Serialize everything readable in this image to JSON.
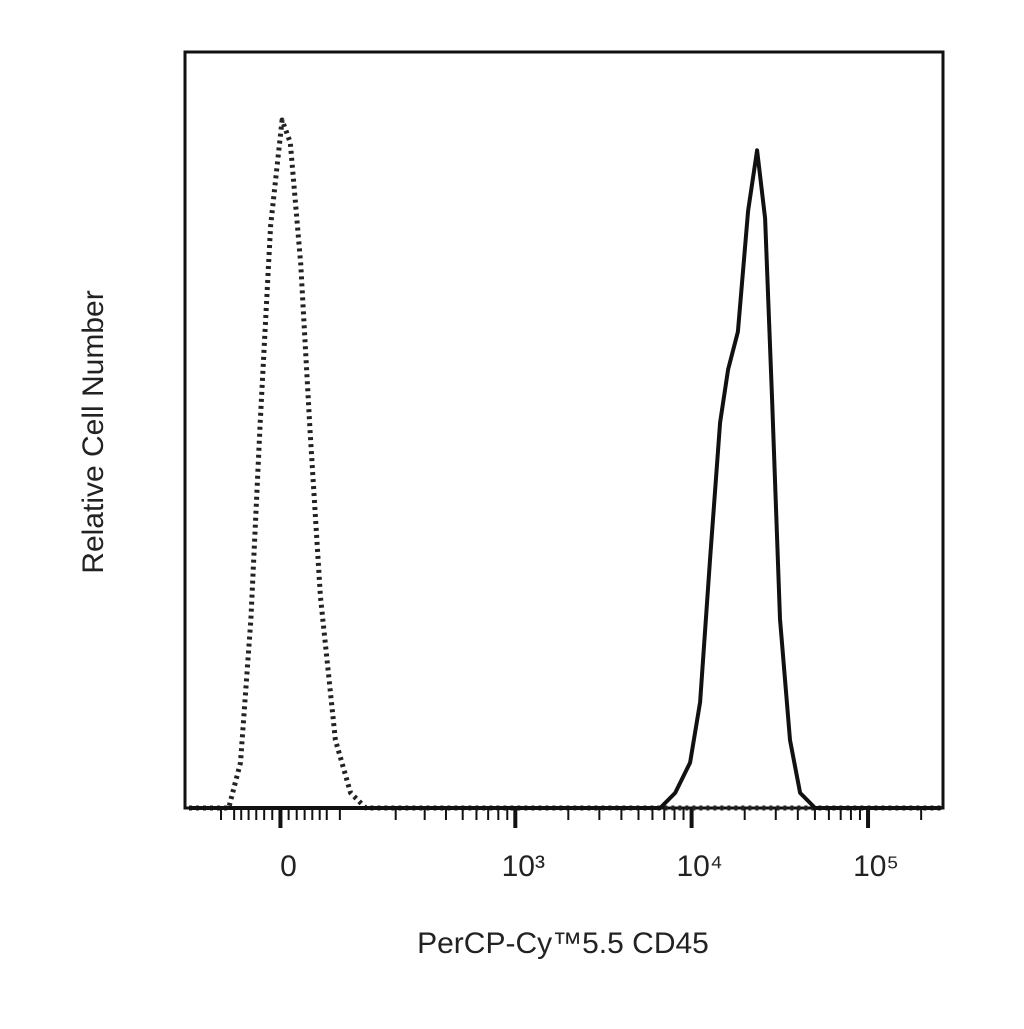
{
  "chart_data": {
    "type": "histogram-overlay",
    "xlabel": "PerCP-Cy™5.5 CD45",
    "ylabel": "Relative Cell Number",
    "xscale": "biexponential",
    "xlim": [
      -149,
      266000
    ],
    "ylim": [
      0,
      100
    ],
    "xticks": [
      {
        "value": 0,
        "label": "0"
      },
      {
        "value": 1000,
        "label": "10³"
      },
      {
        "value": 10000,
        "label": "10⁴"
      },
      {
        "value": 100000,
        "label": "10⁵"
      }
    ],
    "xminor_ticks": [
      -80,
      -60,
      -50,
      -40,
      -30,
      -20,
      -10,
      10,
      20,
      30,
      40,
      50,
      60,
      80,
      200,
      300,
      400,
      500,
      600,
      700,
      800,
      900,
      2000,
      3000,
      4000,
      5000,
      6000,
      7000,
      8000,
      9000,
      20000,
      30000,
      40000,
      50000,
      60000,
      70000,
      80000,
      90000,
      200000
    ],
    "series": [
      {
        "color": "#222222",
        "dash": "dotted",
        "x": [
          -140,
          -68,
          -51,
          -37,
          -25,
          -12,
          2,
          12,
          25,
          37,
          51,
          73,
          98,
          127,
          260000
        ],
        "values": [
          0,
          0,
          6,
          25,
          51,
          77,
          91,
          88,
          72,
          50,
          28,
          9,
          2,
          0,
          0
        ]
      },
      {
        "color": "#111111",
        "dash": "solid",
        "x": [
          -140,
          6640,
          8070,
          9810,
          11170,
          12730,
          14500,
          16100,
          18300,
          20900,
          23500,
          26100,
          28600,
          31700,
          36100,
          41200,
          50100,
          260000
        ],
        "values": [
          0,
          0,
          2,
          6,
          14,
          33,
          51,
          58,
          63,
          79,
          87,
          78,
          54,
          25,
          9,
          2,
          0,
          0
        ]
      }
    ]
  }
}
